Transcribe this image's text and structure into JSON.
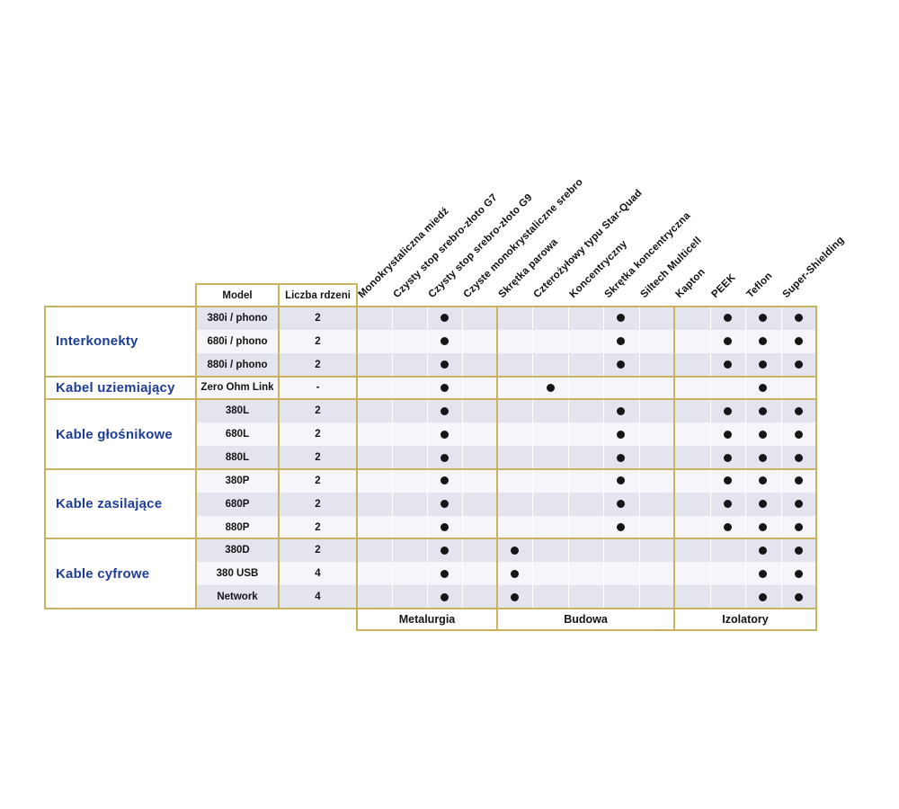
{
  "chart_data": {
    "type": "table",
    "title": "",
    "header": {
      "model": "Model",
      "cores": "Liczba rdzeni"
    },
    "columns": [
      "Monokrystaliczna miedź",
      "Czysty stop srebro-złoto G7",
      "Czysty stop srebro-złoto G9",
      "Czyste monokrystaliczne srebro",
      "Skrętka parowa",
      "Czterożyłowy typu Star-Quad",
      "Koncentryczny",
      "Skrętka koncentryczna",
      "Siltech Multicell",
      "Kapton",
      "PEEK",
      "Teflon",
      "Super-Shielding"
    ],
    "groups": [
      {
        "label": "Metalurgia",
        "span": 4
      },
      {
        "label": "Budowa",
        "span": 5
      },
      {
        "label": "Izolatory",
        "span": 4
      }
    ],
    "categories": [
      {
        "label": "Interkonekty",
        "rows": [
          {
            "model": "380i / phono",
            "cores": "2",
            "marks": [
              3,
              8,
              11,
              12,
              13
            ]
          },
          {
            "model": "680i / phono",
            "cores": "2",
            "marks": [
              3,
              8,
              11,
              12,
              13
            ]
          },
          {
            "model": "880i / phono",
            "cores": "2",
            "marks": [
              3,
              8,
              11,
              12,
              13
            ]
          }
        ]
      },
      {
        "label": "Kabel uziemiający",
        "rows": [
          {
            "model": "Zero Ohm Link",
            "cores": "-",
            "marks": [
              3,
              6,
              12
            ]
          }
        ]
      },
      {
        "label": "Kable głośnikowe",
        "rows": [
          {
            "model": "380L",
            "cores": "2",
            "marks": [
              3,
              8,
              11,
              12,
              13
            ]
          },
          {
            "model": "680L",
            "cores": "2",
            "marks": [
              3,
              8,
              11,
              12,
              13
            ]
          },
          {
            "model": "880L",
            "cores": "2",
            "marks": [
              3,
              8,
              11,
              12,
              13
            ]
          }
        ]
      },
      {
        "label": "Kable zasilające",
        "rows": [
          {
            "model": "380P",
            "cores": "2",
            "marks": [
              3,
              8,
              11,
              12,
              13
            ]
          },
          {
            "model": "680P",
            "cores": "2",
            "marks": [
              3,
              8,
              11,
              12,
              13
            ]
          },
          {
            "model": "880P",
            "cores": "2",
            "marks": [
              3,
              8,
              11,
              12,
              13
            ]
          }
        ]
      },
      {
        "label": "Kable cyfrowe",
        "rows": [
          {
            "model": "380D",
            "cores": "2",
            "marks": [
              3,
              5,
              12,
              13
            ]
          },
          {
            "model": "380 USB",
            "cores": "4",
            "marks": [
              3,
              5,
              12,
              13
            ]
          },
          {
            "model": "Network",
            "cores": "4",
            "marks": [
              3,
              5,
              12,
              13
            ]
          }
        ]
      }
    ],
    "colors": {
      "border_gold": "#c9b363",
      "row_shaded": "#e4e4ee",
      "row_plain": "#f6f6fa",
      "category_text": "#1e3d96",
      "dot": "#161616",
      "text": "#141414"
    }
  }
}
